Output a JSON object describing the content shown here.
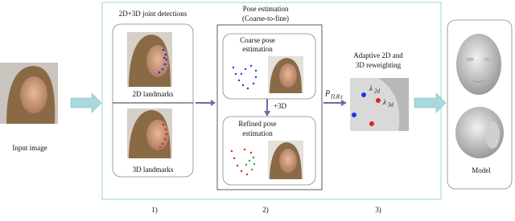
{
  "stage1": {
    "title": "2D+3D joint detections",
    "top_label": "2D landmarks",
    "bottom_label": "3D landmarks",
    "step": "1)"
  },
  "input": {
    "label": "Input image"
  },
  "stage2": {
    "title": "Pose estimation",
    "subtitle": "(Coarse-to-fine)",
    "coarse": [
      "Coarse pose",
      "estimation"
    ],
    "plus": "+3D",
    "refined": [
      "Refined pose",
      "estimation"
    ],
    "step": "2)"
  },
  "projection": {
    "symbol": "P",
    "subscript": "Π,R,t"
  },
  "stage3": {
    "title": [
      "Adaptive 2D and",
      "3D reweighting"
    ],
    "lambda_2d": {
      "symbol": "λ",
      "subscript": "2d"
    },
    "lambda_3d": {
      "symbol": "λ",
      "subscript": "3d"
    },
    "step": "3)"
  },
  "model": {
    "label": "Model"
  }
}
